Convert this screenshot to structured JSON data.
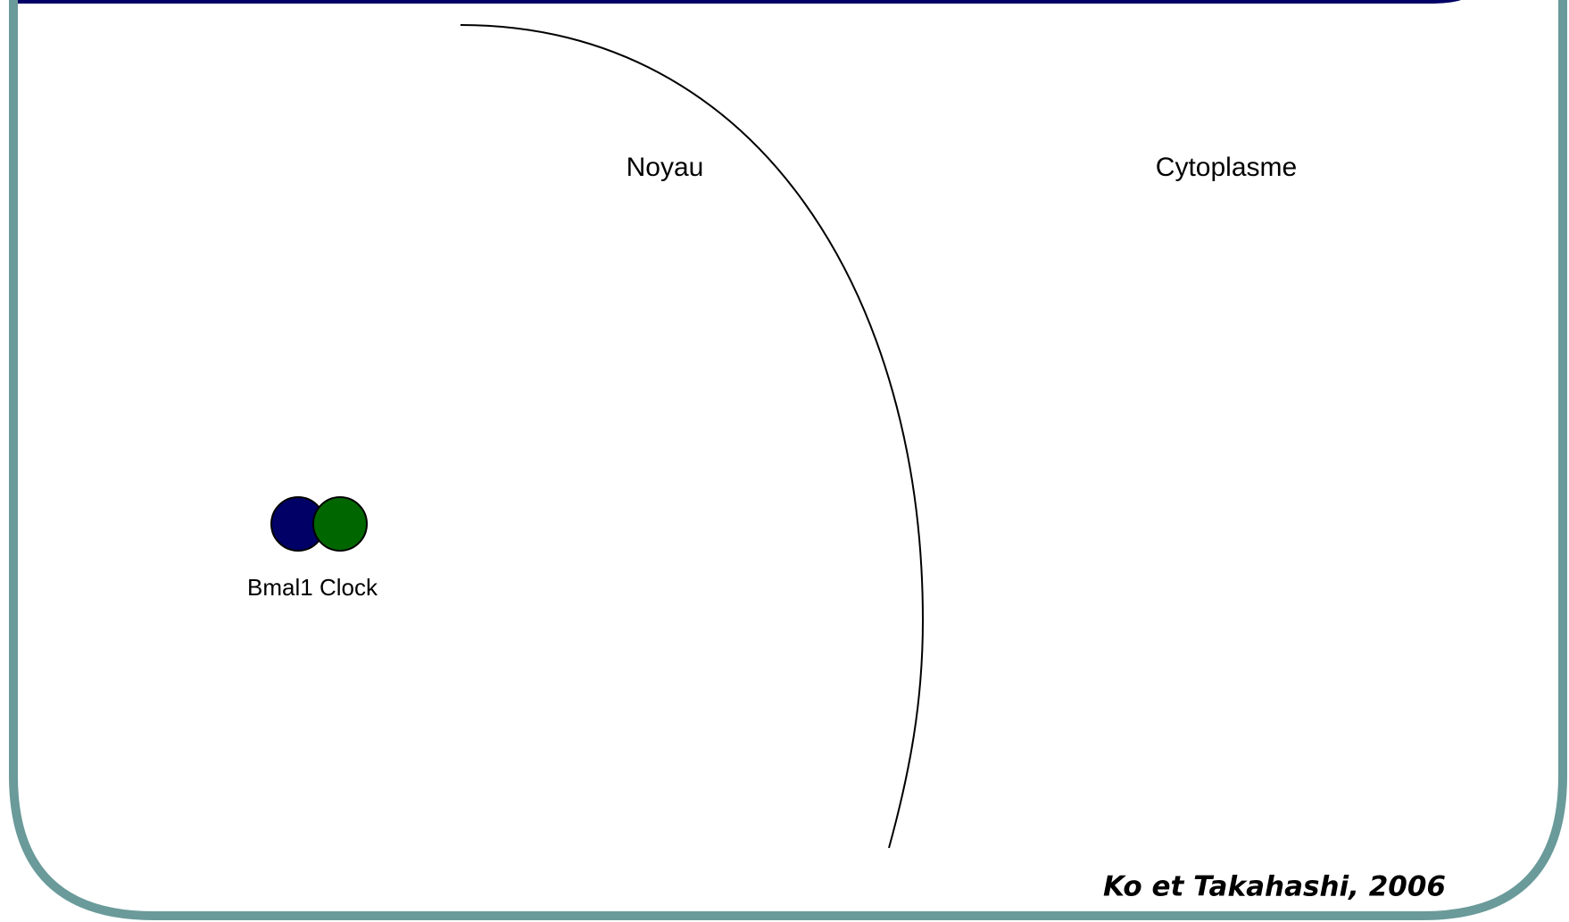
{
  "labels": {
    "nucleus": "Noyau",
    "cytoplasm": "Cytoplasme",
    "proteins": "Bmal1 Clock"
  },
  "citation": "Ko et Takahashi, 2006"
}
